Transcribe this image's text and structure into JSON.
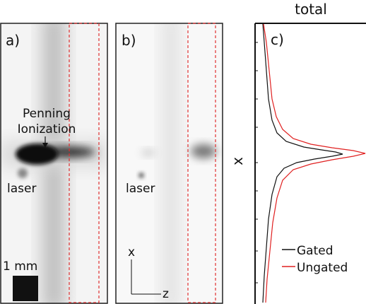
{
  "panel_a": {
    "label": "a)",
    "annotation": [
      "Penning",
      "Ionization"
    ],
    "laser": "laser",
    "scale": "1 mm"
  },
  "panel_b": {
    "label": "b)",
    "laser": "laser",
    "axis_x": "x",
    "axis_z": "z"
  },
  "panel_c": {
    "label": "c)",
    "title": "total",
    "axis_label": "x",
    "legend": [
      "Gated",
      "Ungated"
    ]
  }
}
